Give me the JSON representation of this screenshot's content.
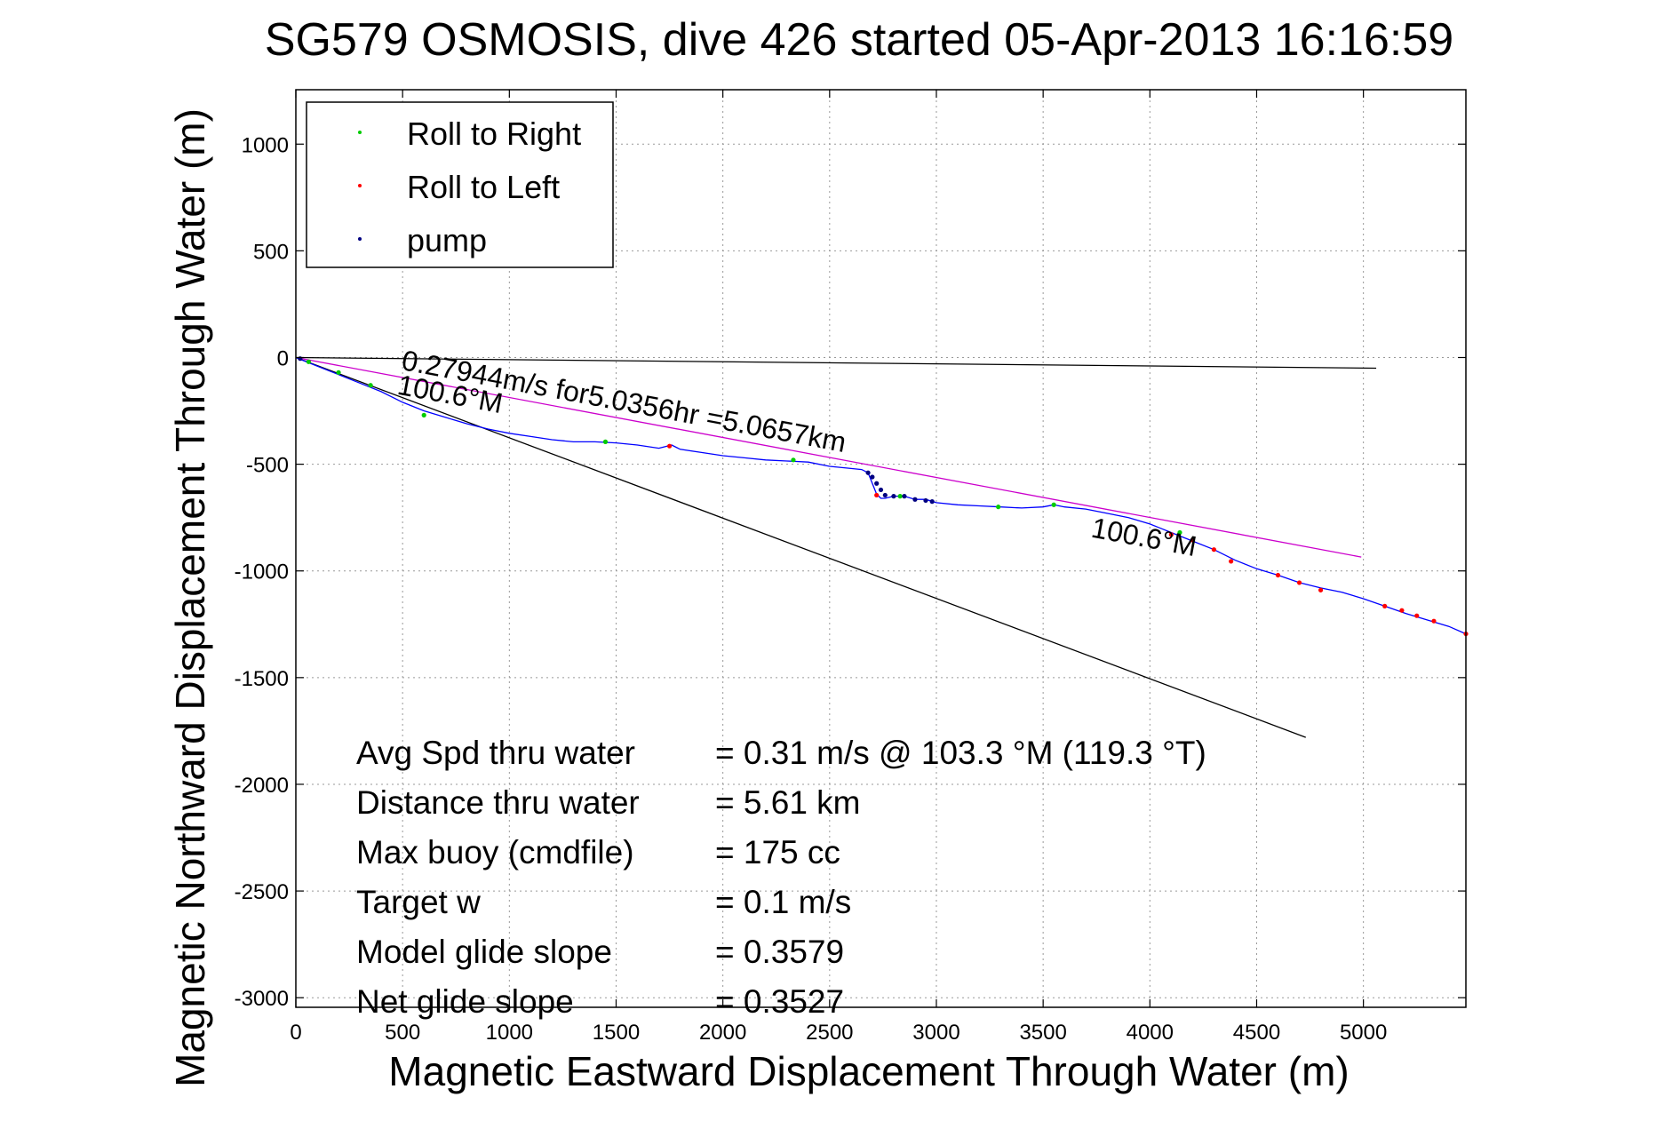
{
  "chart_data": {
    "type": "scatter",
    "title": "SG579 OSMOSIS, dive 426 started 05-Apr-2013 16:16:59",
    "xlabel": "Magnetic Eastward Displacement Through Water (m)",
    "ylabel": "Magnetic Northward Displacement Through Water (m)",
    "xlim": [
      0,
      5480
    ],
    "ylim": [
      -3045,
      1255
    ],
    "xticks": [
      0,
      500,
      1000,
      1500,
      2000,
      2500,
      3000,
      3500,
      4000,
      4500,
      5000
    ],
    "yticks": [
      1000,
      500,
      0,
      -500,
      -1000,
      -1500,
      -2000,
      -2500,
      -3000
    ],
    "grid": true,
    "legend_position": "top-left",
    "legend": [
      {
        "label": "Roll to Right",
        "color": "#00cc00"
      },
      {
        "label": "Roll to Left",
        "color": "#ff0000"
      },
      {
        "label": "pump",
        "color": "#000080"
      }
    ],
    "track": {
      "color": "#0000ff",
      "x": [
        0,
        100,
        200,
        300,
        400,
        500,
        600,
        700,
        800,
        900,
        1000,
        1100,
        1200,
        1300,
        1400,
        1500,
        1600,
        1700,
        1760,
        1800,
        1900,
        2000,
        2100,
        2200,
        2300,
        2400,
        2500,
        2600,
        2650,
        2680,
        2700,
        2720,
        2740,
        2760,
        2800,
        2850,
        2900,
        2950,
        3000,
        3100,
        3200,
        3300,
        3400,
        3500,
        3550,
        3600,
        3700,
        3800,
        3900,
        4000,
        4050,
        4100,
        4200,
        4300,
        4400,
        4500,
        4600,
        4700,
        4800,
        4900,
        5000,
        5100,
        5200,
        5300,
        5400,
        5480
      ],
      "y": [
        0,
        -40,
        -80,
        -120,
        -160,
        -210,
        -250,
        -280,
        -310,
        -335,
        -355,
        -370,
        -385,
        -395,
        -395,
        -400,
        -410,
        -425,
        -410,
        -430,
        -445,
        -460,
        -470,
        -480,
        -485,
        -490,
        -510,
        -520,
        -525,
        -540,
        -590,
        -640,
        -660,
        -660,
        -650,
        -650,
        -665,
        -665,
        -680,
        -690,
        -695,
        -700,
        -705,
        -700,
        -690,
        -700,
        -710,
        -730,
        -750,
        -780,
        -800,
        -820,
        -860,
        -900,
        -950,
        -990,
        -1020,
        -1055,
        -1080,
        -1100,
        -1130,
        -1165,
        -1200,
        -1230,
        -1260,
        -1295
      ]
    },
    "roll_right_points": {
      "x": [
        60,
        200,
        350,
        600,
        1450,
        2330,
        2830,
        3290,
        3550,
        4140
      ],
      "y": [
        -20,
        -70,
        -130,
        -270,
        -395,
        -480,
        -650,
        -700,
        -690,
        -820
      ]
    },
    "roll_left_points": {
      "x": [
        1750,
        2720,
        4100,
        4200,
        4300,
        4380,
        4600,
        4700,
        4800,
        5100,
        5180,
        5250,
        5330,
        5480
      ],
      "y": [
        -415,
        -645,
        -830,
        -855,
        -900,
        -955,
        -1020,
        -1055,
        -1090,
        -1165,
        -1185,
        -1210,
        -1235,
        -1295
      ]
    },
    "pump_points": {
      "x": [
        20,
        2680,
        2700,
        2720,
        2740,
        2760,
        2800,
        2850,
        2900,
        2950,
        2980
      ],
      "y": [
        -5,
        -540,
        -560,
        -590,
        -620,
        -645,
        -650,
        -650,
        -665,
        -670,
        -675
      ]
    },
    "reference_lines": [
      {
        "name": "heading",
        "color": "#000000",
        "x": [
          0,
          4730
        ],
        "y": [
          0,
          -1780
        ]
      },
      {
        "name": "current",
        "color": "#000000",
        "x": [
          0,
          5060
        ],
        "y": [
          0,
          -50
        ]
      },
      {
        "name": "avg",
        "color": "#cc00cc",
        "x": [
          0,
          4990
        ],
        "y": [
          0,
          -935
        ]
      }
    ],
    "annotations": [
      {
        "text": "0.27944m/s for5.0356hr =5.0657km",
        "x": 490,
        "y": -55,
        "angle": 10.6
      },
      {
        "text": "100.6°M",
        "x": 470,
        "y": -170,
        "angle": 10.6
      },
      {
        "text": "100.6°M",
        "x": 3720,
        "y": -840,
        "angle": 10.6
      }
    ],
    "stats": [
      {
        "label": "Avg Spd thru water",
        "value": "=  0.31 m/s @ 103.3 °M (119.3 °T)"
      },
      {
        "label": "Distance thru water",
        "value": "=  5.61 km"
      },
      {
        "label": "Max buoy (cmdfile)",
        "value": "= 175 cc"
      },
      {
        "label": "Target w",
        "value": "= 0.1 m/s"
      },
      {
        "label": "Model glide slope",
        "value": "= 0.3579"
      },
      {
        "label": "Net glide slope",
        "value": "= 0.3527"
      }
    ]
  }
}
